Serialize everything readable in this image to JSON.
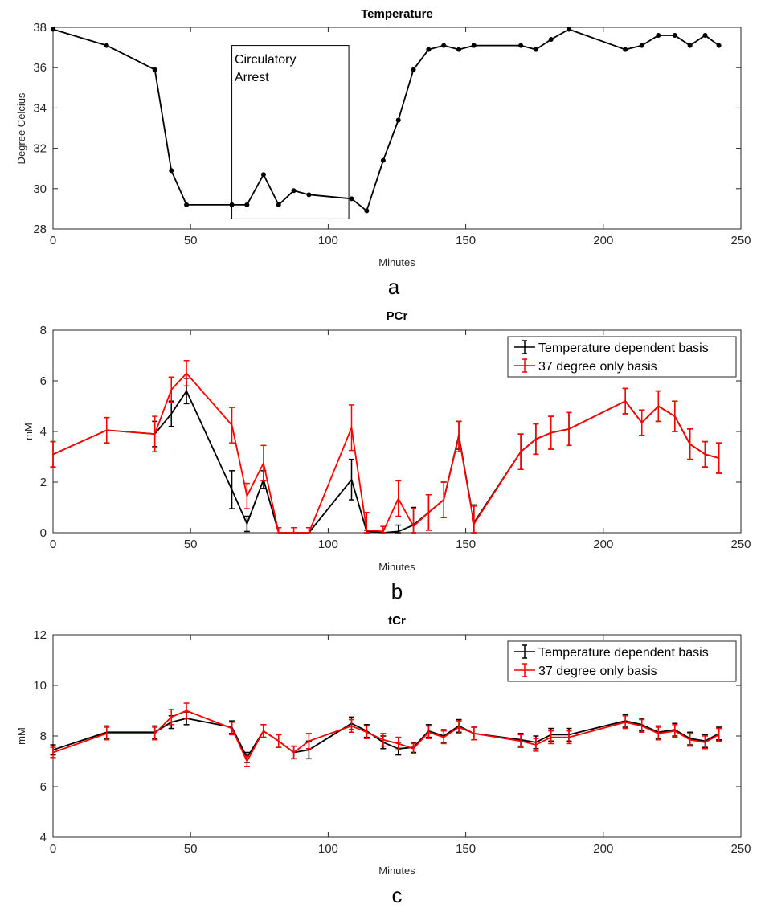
{
  "chart_data": [
    {
      "type": "line",
      "title": "Temperature",
      "xlabel": "Minutes",
      "ylabel": "Degree Celcius",
      "panel_label": "a",
      "xlim": [
        0,
        250
      ],
      "ylim": [
        28,
        38
      ],
      "xticks": [
        "0",
        "50",
        "100",
        "150",
        "200",
        "250"
      ],
      "yticks": [
        "28",
        "30",
        "32",
        "34",
        "36",
        "38"
      ],
      "series": [
        {
          "name": "Temperature",
          "color": "#000000",
          "x": [
            0,
            19.5,
            37,
            43,
            48.5,
            65,
            70.5,
            76.5,
            82,
            87.5,
            93,
            108.5,
            114,
            120,
            125.5,
            131,
            136.5,
            142,
            147.5,
            153,
            170,
            175.5,
            181,
            187.5,
            208,
            214,
            220,
            226,
            231.5,
            237,
            242
          ],
          "y": [
            37.9,
            37.1,
            35.9,
            30.9,
            29.2,
            29.2,
            29.2,
            30.7,
            29.2,
            29.9,
            29.7,
            29.5,
            28.9,
            31.4,
            33.4,
            35.9,
            36.9,
            37.1,
            36.9,
            37.1,
            37.1,
            36.9,
            37.4,
            37.9,
            36.9,
            37.1,
            37.6,
            37.6,
            37.1,
            37.6,
            37.1
          ]
        }
      ],
      "annotation": {
        "lines": [
          "Circulatory",
          "Arrest"
        ],
        "x_range": [
          65,
          107.5
        ],
        "y_range": [
          28.5,
          37.1
        ]
      }
    },
    {
      "type": "line",
      "title": "PCr",
      "xlabel": "Minutes",
      "ylabel": "mM",
      "panel_label": "b",
      "xlim": [
        0,
        250
      ],
      "ylim": [
        0,
        8
      ],
      "xticks": [
        "0",
        "50",
        "100",
        "150",
        "200",
        "250"
      ],
      "yticks": [
        "0",
        "2",
        "4",
        "6",
        "8"
      ],
      "legend": {
        "location": "top-right",
        "entries": [
          "Temperature dependent basis",
          "37 degree only basis"
        ]
      },
      "series": [
        {
          "name": "Temperature dependent basis",
          "color": "#000000",
          "x": [
            0,
            19.5,
            37,
            43,
            48.5,
            65,
            70.5,
            76.5,
            82,
            87.5,
            93,
            108.5,
            114,
            120,
            125.5,
            131,
            136.5,
            142,
            147.5,
            153,
            170,
            175.5,
            181,
            187.5,
            208,
            214,
            220,
            226,
            231.5,
            237,
            242
          ],
          "y": [
            3.1,
            4.05,
            3.9,
            4.7,
            5.6,
            1.7,
            0.35,
            2.1,
            0.0,
            0.0,
            0.0,
            2.1,
            0.05,
            0.0,
            0.05,
            0.3,
            0.8,
            1.3,
            3.85,
            0.4,
            3.2,
            3.7,
            3.95,
            4.1,
            5.2,
            4.35,
            5.0,
            4.6,
            3.5,
            3.1,
            2.95
          ],
          "err": [
            0.5,
            0.5,
            0.5,
            0.5,
            0.5,
            0.75,
            0.3,
            0.35,
            0.0,
            0.0,
            0.0,
            0.8,
            0.05,
            0.0,
            0.25,
            0.7,
            0.7,
            0.7,
            0.55,
            0.7,
            0.7,
            0.6,
            0.65,
            0.65,
            0.5,
            0.5,
            0.6,
            0.6,
            0.6,
            0.5,
            0.6
          ]
        },
        {
          "name": "37 degree only basis",
          "color": "#ff0000",
          "x": [
            0,
            19.5,
            37,
            43,
            48.5,
            65,
            70.5,
            76.5,
            82,
            87.5,
            93,
            108.5,
            114,
            120,
            125.5,
            131,
            136.5,
            142,
            147.5,
            153,
            170,
            175.5,
            181,
            187.5,
            208,
            214,
            220,
            226,
            231.5,
            237,
            242
          ],
          "y": [
            3.1,
            4.05,
            3.9,
            5.65,
            6.3,
            4.25,
            1.45,
            2.75,
            0.0,
            0.0,
            0.0,
            4.15,
            0.1,
            0.05,
            1.35,
            0.25,
            0.8,
            1.3,
            3.8,
            0.35,
            3.2,
            3.7,
            3.95,
            4.1,
            5.2,
            4.35,
            5.0,
            4.6,
            3.5,
            3.1,
            2.95
          ],
          "err": [
            0.5,
            0.5,
            0.7,
            0.5,
            0.5,
            0.7,
            0.5,
            0.7,
            0.2,
            0.2,
            0.2,
            0.9,
            0.7,
            0.2,
            0.7,
            0.7,
            0.7,
            0.7,
            0.6,
            0.7,
            0.7,
            0.6,
            0.65,
            0.65,
            0.5,
            0.5,
            0.6,
            0.6,
            0.6,
            0.5,
            0.6
          ]
        }
      ]
    },
    {
      "type": "line",
      "title": "tCr",
      "xlabel": "Minutes",
      "ylabel": "mM",
      "panel_label": "c",
      "xlim": [
        0,
        250
      ],
      "ylim": [
        4,
        12
      ],
      "xticks": [
        "0",
        "50",
        "100",
        "150",
        "200",
        "250"
      ],
      "yticks": [
        "4",
        "6",
        "8",
        "10",
        "12"
      ],
      "legend": {
        "location": "top-right",
        "entries": [
          "Temperature dependent basis",
          "37 degree only basis"
        ]
      },
      "series": [
        {
          "name": "Temperature dependent basis",
          "color": "#000000",
          "x": [
            0,
            19.5,
            37,
            43,
            48.5,
            65,
            70.5,
            76.5,
            82,
            87.5,
            93,
            108.5,
            114,
            120,
            125.5,
            131,
            136.5,
            142,
            147.5,
            153,
            170,
            175.5,
            181,
            187.5,
            208,
            214,
            220,
            226,
            231.5,
            237,
            242
          ],
          "y": [
            7.45,
            8.15,
            8.15,
            8.55,
            8.7,
            8.35,
            7.15,
            8.2,
            7.8,
            7.35,
            7.45,
            8.5,
            8.2,
            7.75,
            7.5,
            7.55,
            8.2,
            8.0,
            8.4,
            8.1,
            7.85,
            7.75,
            8.05,
            8.05,
            8.6,
            8.45,
            8.15,
            8.25,
            7.9,
            7.8,
            8.1
          ],
          "err": [
            0.2,
            0.25,
            0.25,
            0.25,
            0.25,
            0.25,
            0.2,
            0.25,
            0.25,
            0.25,
            0.35,
            0.25,
            0.25,
            0.25,
            0.25,
            0.2,
            0.25,
            0.25,
            0.25,
            0.25,
            0.25,
            0.25,
            0.25,
            0.25,
            0.25,
            0.25,
            0.25,
            0.25,
            0.25,
            0.25,
            0.25
          ]
        },
        {
          "name": "37 degree only basis",
          "color": "#ff0000",
          "x": [
            0,
            19.5,
            37,
            43,
            48.5,
            65,
            70.5,
            76.5,
            82,
            87.5,
            93,
            108.5,
            114,
            120,
            125.5,
            131,
            136.5,
            142,
            147.5,
            153,
            170,
            175.5,
            181,
            187.5,
            208,
            214,
            220,
            226,
            231.5,
            237,
            242
          ],
          "y": [
            7.35,
            8.1,
            8.1,
            8.75,
            9.0,
            8.3,
            7.0,
            8.2,
            7.8,
            7.35,
            7.8,
            8.4,
            8.15,
            7.85,
            7.7,
            7.5,
            8.15,
            7.95,
            8.35,
            8.1,
            7.8,
            7.65,
            7.95,
            7.95,
            8.55,
            8.4,
            8.1,
            8.2,
            7.85,
            7.75,
            8.05
          ],
          "err": [
            0.2,
            0.25,
            0.25,
            0.3,
            0.3,
            0.25,
            0.2,
            0.25,
            0.25,
            0.25,
            0.3,
            0.25,
            0.25,
            0.25,
            0.25,
            0.2,
            0.25,
            0.25,
            0.25,
            0.25,
            0.25,
            0.25,
            0.25,
            0.25,
            0.25,
            0.25,
            0.25,
            0.25,
            0.25,
            0.25,
            0.25
          ]
        }
      ]
    }
  ]
}
